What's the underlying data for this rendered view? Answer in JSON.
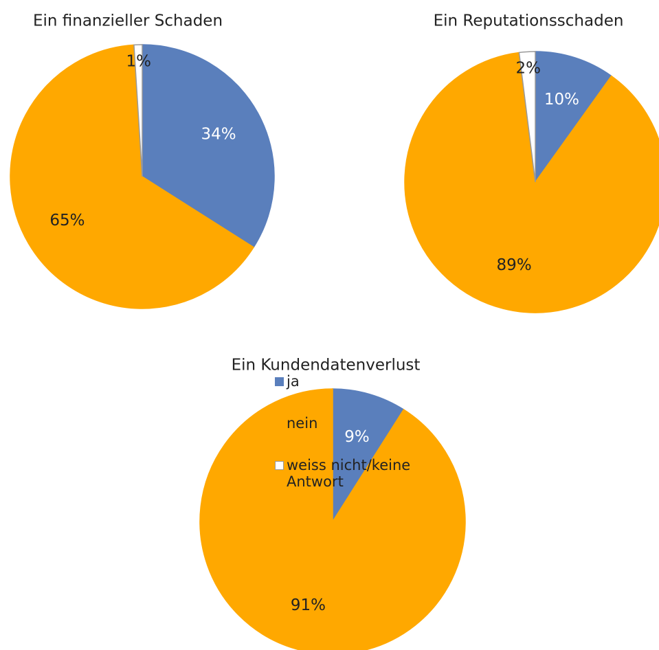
{
  "legend": {
    "categories": [
      "ja",
      "nein",
      "weiss nicht/keine Antwort"
    ],
    "colors": [
      "#5a7fbc",
      "#ffa800",
      "#ffffff"
    ],
    "label_colors": [
      "#ffffff",
      "#222222",
      "#222222"
    ]
  },
  "chart_data": [
    {
      "type": "pie",
      "title": "Ein finanzieller Schaden",
      "values": [
        34,
        65,
        1
      ],
      "value_labels": [
        "34%",
        "65%",
        "1%"
      ]
    },
    {
      "type": "pie",
      "title": "Ein Reputationsschaden",
      "values": [
        10,
        89,
        2
      ],
      "value_labels": [
        "10%",
        "89%",
        "2%"
      ]
    },
    {
      "type": "pie",
      "title": "Ein Kundendatenverlust",
      "values": [
        9,
        91
      ],
      "value_labels": [
        "9%",
        "91%"
      ]
    }
  ]
}
